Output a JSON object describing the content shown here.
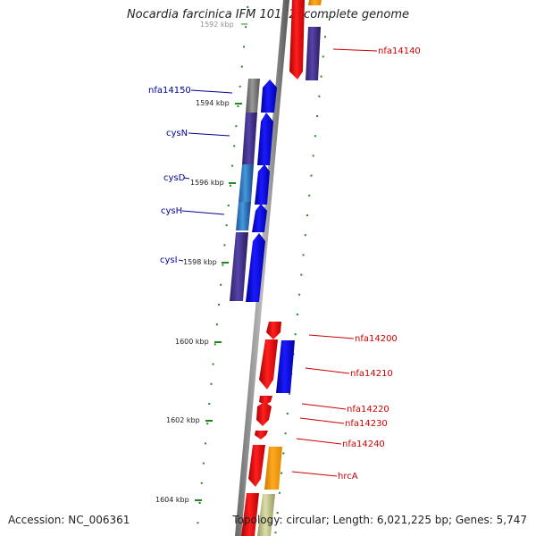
{
  "title": "Nocardia farcinica IFM 10152, complete genome",
  "accession": "Accession: NC_006361",
  "topology": "Topology: circular; Length: 6,021,225 bp; Genes: 5,747",
  "scale_labels": [
    "1592 kbp",
    "1594 kbp",
    "1596 kbp",
    "1598 kbp",
    "1600 kbp",
    "1602 kbp",
    "1604 kbp"
  ],
  "gene_labels": {
    "left": [
      "nfa14150",
      "cysN",
      "cysD",
      "cysH",
      "cysI"
    ],
    "right": [
      "nfa14140",
      "nfa14200",
      "nfa14210",
      "nfa14220",
      "nfa14230",
      "nfa14240",
      "hrcA"
    ]
  },
  "colors": {
    "red": "#ee0000",
    "blue": "#0000dd",
    "darkblue": "#443388",
    "orange": "#ff9900",
    "label_left": "#000099",
    "label_right": "#cc0000",
    "tick": "#228822"
  }
}
